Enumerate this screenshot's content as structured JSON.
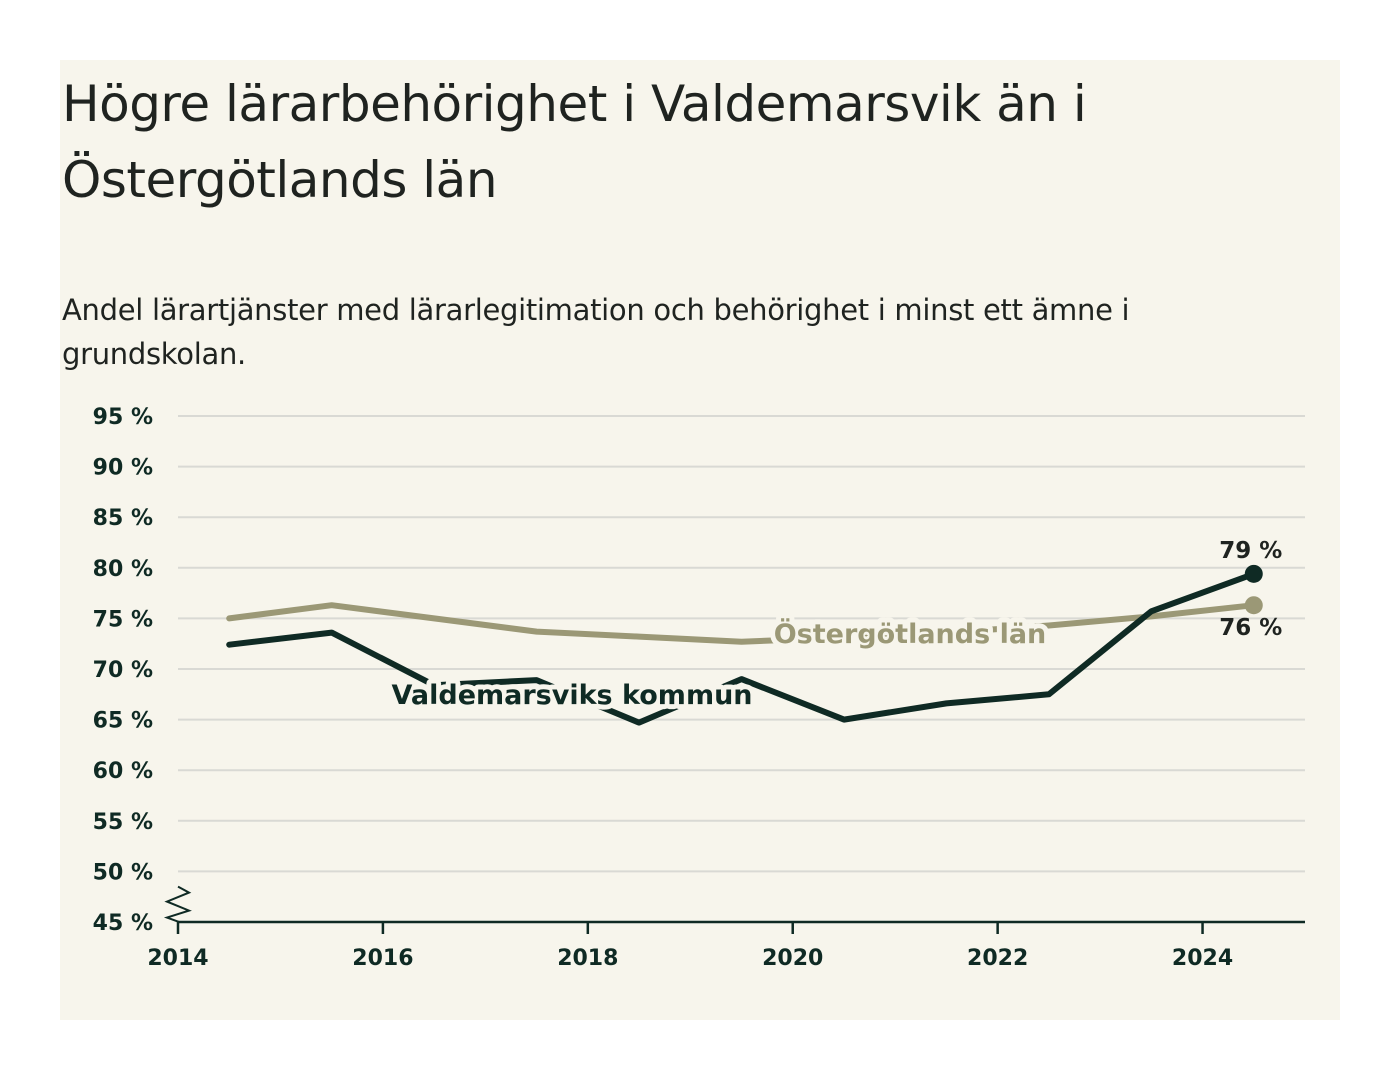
{
  "title": "Högre lärarbehörighet i Valdemarsvik än i Östergötlands län",
  "subtitle": "Andel lärartjänster med lärarlegitimation och behörighet i minst ett ämne i grundskolan.",
  "colors": {
    "background": "#f7f5ec",
    "grid": "#d9d9d4",
    "valdemarsvik": "#0f2a24",
    "ostergotland": "#9b9876",
    "axis": "#0f2a24"
  },
  "chart_data": {
    "type": "line",
    "title": "Högre lärarbehörighet i Valdemarsvik än i Östergötlands län",
    "subtitle": "Andel lärartjänster med lärarlegitimation och behörighet i minst ett ämne i grundskolan.",
    "xlabel": "",
    "ylabel": "",
    "xlim": [
      2014,
      2025
    ],
    "ylim": [
      45,
      95
    ],
    "y_axis_break": true,
    "grid": true,
    "x_ticks": [
      {
        "value": 2014,
        "label": "2014"
      },
      {
        "value": 2016,
        "label": "2016"
      },
      {
        "value": 2018,
        "label": "2018"
      },
      {
        "value": 2020,
        "label": "2020"
      },
      {
        "value": 2022,
        "label": "2022"
      },
      {
        "value": 2024,
        "label": "2024"
      }
    ],
    "y_ticks": [
      {
        "value": 95,
        "label": "95 %"
      },
      {
        "value": 90,
        "label": "90 %"
      },
      {
        "value": 85,
        "label": "85 %"
      },
      {
        "value": 80,
        "label": "80 %"
      },
      {
        "value": 75,
        "label": "75 %"
      },
      {
        "value": 70,
        "label": "70 %"
      },
      {
        "value": 65,
        "label": "65 %"
      },
      {
        "value": 60,
        "label": "60 %"
      },
      {
        "value": 55,
        "label": "55 %"
      },
      {
        "value": 50,
        "label": "50 %"
      },
      {
        "value": 45,
        "label": "45 %"
      }
    ],
    "x": [
      2014.5,
      2015.5,
      2016.5,
      2017.5,
      2018.5,
      2019.5,
      2020.5,
      2021.5,
      2022.5,
      2023.5,
      2024.5
    ],
    "series": [
      {
        "name": "Östergötlands län",
        "color": "#9b9876",
        "values": [
          75.0,
          76.3,
          75.0,
          73.7,
          73.2,
          72.7,
          73.1,
          73.6,
          74.3,
          75.2,
          76.3
        ],
        "end_label": "76 %"
      },
      {
        "name": "Valdemarsviks kommun",
        "color": "#0f2a24",
        "values": [
          72.4,
          73.6,
          68.4,
          68.9,
          64.7,
          69.0,
          65.0,
          66.6,
          67.5,
          75.7,
          79.4
        ],
        "end_label": "79 %"
      }
    ]
  }
}
